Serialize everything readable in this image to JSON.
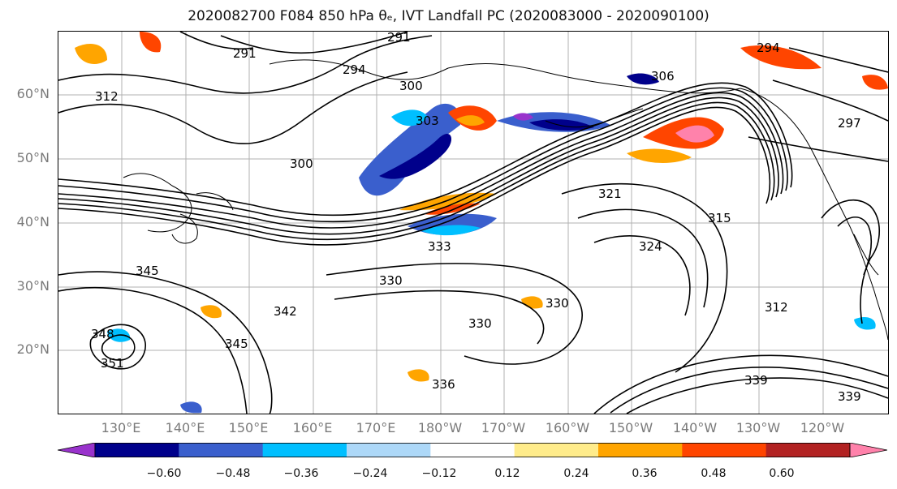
{
  "title": "2020082700 F084 850 hPa θₑ, IVT Landfall PC (2020083000 - 2020090100)",
  "lat_labels": [
    "60°N",
    "50°N",
    "40°N",
    "30°N",
    "20°N"
  ],
  "lon_labels": [
    "130°E",
    "140°E",
    "150°E",
    "160°E",
    "170°E",
    "180°W",
    "170°W",
    "160°W",
    "150°W",
    "140°W",
    "130°W",
    "120°W"
  ],
  "contour_labels": [
    "291",
    "291",
    "294",
    "294",
    "297",
    "300",
    "300",
    "303",
    "306",
    "312",
    "312",
    "315",
    "321",
    "324",
    "330",
    "330",
    "330",
    "333",
    "336",
    "339",
    "339",
    "342",
    "345",
    "345",
    "348",
    "351"
  ],
  "colorbar": {
    "colors": [
      "#9933cc",
      "#00008b",
      "#3a5fcd",
      "#00bfff",
      "#add8f8",
      "#ffffff",
      "#ffec8b",
      "#ffa500",
      "#ff4500",
      "#b22222",
      "#ff82ab"
    ],
    "ticks": [
      "−0.60",
      "−0.48",
      "−0.36",
      "−0.24",
      "−0.12",
      "0.12",
      "0.24",
      "0.36",
      "0.48",
      "0.60"
    ]
  },
  "legend_colors": {
    "contour": "#000000",
    "grid": "#b0b0b0",
    "coast": "#000000"
  }
}
